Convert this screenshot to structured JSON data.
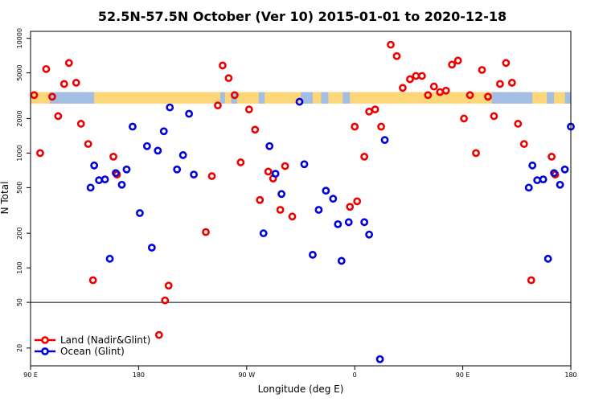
{
  "chart_data": {
    "type": "scatter",
    "title": "52.5N-57.5N October (Ver 10)   2015-01-01 to 2020-12-18",
    "xlabel": "Longitude (deg E)",
    "ylabel": "N Total",
    "xlim": [
      90,
      540
    ],
    "ylim": [
      14,
      11500
    ],
    "y_scale": "log",
    "grid": false,
    "x_ticks": [
      {
        "value": 90,
        "label": "90 E"
      },
      {
        "value": 180,
        "label": "180"
      },
      {
        "value": 270,
        "label": "90 W"
      },
      {
        "value": 360,
        "label": "0"
      },
      {
        "value": 450,
        "label": "90 E"
      },
      {
        "value": 540,
        "label": "180"
      }
    ],
    "y_ticks": [
      {
        "value": 20,
        "label": "20"
      },
      {
        "value": 50,
        "label": "50"
      },
      {
        "value": 100,
        "label": "100"
      },
      {
        "value": 200,
        "label": "200"
      },
      {
        "value": 500,
        "label": "500"
      },
      {
        "value": 1000,
        "label": "1000"
      },
      {
        "value": 2000,
        "label": "2000"
      },
      {
        "value": 5000,
        "label": "5000"
      },
      {
        "value": 10000,
        "label": "10000"
      }
    ],
    "reference_line": {
      "y": 50,
      "color": "#000000"
    },
    "map_strip": {
      "y_range": [
        2700,
        3400
      ],
      "land_color": "#fcd77a",
      "ocean_color": "#a3bde3"
    },
    "legend": {
      "placement": "bottom-left",
      "entries": [
        {
          "label": "Land (Nadir&Glint)",
          "color": "#ee0000"
        },
        {
          "label": "Ocean (Glint)",
          "color": "#0000dd"
        }
      ]
    },
    "series": [
      {
        "name": "Land (Nadir&Glint)",
        "color": "#ee0000",
        "points": [
          [
            93,
            3200
          ],
          [
            98,
            1000
          ],
          [
            103,
            5400
          ],
          [
            108,
            3100
          ],
          [
            113,
            2100
          ],
          [
            118,
            4000
          ],
          [
            122,
            6100
          ],
          [
            128,
            4100
          ],
          [
            132,
            1800
          ],
          [
            138,
            1200
          ],
          [
            142,
            78
          ],
          [
            159,
            930
          ],
          [
            162,
            650
          ],
          [
            197,
            26
          ],
          [
            202,
            52
          ],
          [
            205,
            70
          ],
          [
            236,
            205
          ],
          [
            241,
            630
          ],
          [
            246,
            2600
          ],
          [
            250,
            5800
          ],
          [
            255,
            4500
          ],
          [
            260,
            3200
          ],
          [
            265,
            830
          ],
          [
            272,
            2400
          ],
          [
            277,
            1600
          ],
          [
            281,
            390
          ],
          [
            288,
            690
          ],
          [
            292,
            600
          ],
          [
            298,
            320
          ],
          [
            302,
            770
          ],
          [
            308,
            280
          ],
          [
            356,
            340
          ],
          [
            360,
            1700
          ],
          [
            362,
            380
          ],
          [
            368,
            930
          ],
          [
            372,
            2300
          ],
          [
            377,
            2400
          ],
          [
            382,
            1700
          ],
          [
            390,
            8800
          ],
          [
            395,
            7000
          ],
          [
            400,
            3700
          ],
          [
            406,
            4400
          ],
          [
            411,
            4700
          ],
          [
            416,
            4700
          ],
          [
            421,
            3200
          ],
          [
            426,
            3800
          ],
          [
            431,
            3400
          ],
          [
            436,
            3500
          ],
          [
            441,
            5900
          ],
          [
            446,
            6400
          ],
          [
            451,
            2000
          ],
          [
            456,
            3200
          ],
          [
            461,
            1000
          ],
          [
            466,
            5300
          ],
          [
            471,
            3100
          ],
          [
            476,
            2100
          ],
          [
            481,
            4000
          ],
          [
            486,
            6100
          ],
          [
            491,
            4100
          ],
          [
            496,
            1800
          ],
          [
            501,
            1200
          ],
          [
            507,
            78
          ],
          [
            524,
            930
          ],
          [
            527,
            650
          ]
        ]
      },
      {
        "name": "Ocean (Glint)",
        "color": "#0000dd",
        "points": [
          [
            140,
            500
          ],
          [
            143,
            780
          ],
          [
            147,
            580
          ],
          [
            152,
            590
          ],
          [
            156,
            120
          ],
          [
            161,
            670
          ],
          [
            166,
            530
          ],
          [
            170,
            720
          ],
          [
            175,
            1700
          ],
          [
            181,
            300
          ],
          [
            187,
            1150
          ],
          [
            191,
            150
          ],
          [
            196,
            1050
          ],
          [
            201,
            1550
          ],
          [
            206,
            2500
          ],
          [
            212,
            720
          ],
          [
            217,
            960
          ],
          [
            222,
            2200
          ],
          [
            226,
            650
          ],
          [
            284,
            200
          ],
          [
            289,
            1150
          ],
          [
            294,
            660
          ],
          [
            299,
            440
          ],
          [
            314,
            2800
          ],
          [
            318,
            800
          ],
          [
            325,
            130
          ],
          [
            330,
            320
          ],
          [
            336,
            470
          ],
          [
            342,
            400
          ],
          [
            346,
            240
          ],
          [
            349,
            115
          ],
          [
            355,
            250
          ],
          [
            368,
            250
          ],
          [
            372,
            195
          ],
          [
            381,
            16
          ],
          [
            385,
            1300
          ],
          [
            505,
            500
          ],
          [
            508,
            780
          ],
          [
            512,
            580
          ],
          [
            517,
            590
          ],
          [
            521,
            120
          ],
          [
            526,
            670
          ],
          [
            531,
            530
          ],
          [
            535,
            720
          ],
          [
            540,
            1700
          ]
        ]
      }
    ]
  }
}
